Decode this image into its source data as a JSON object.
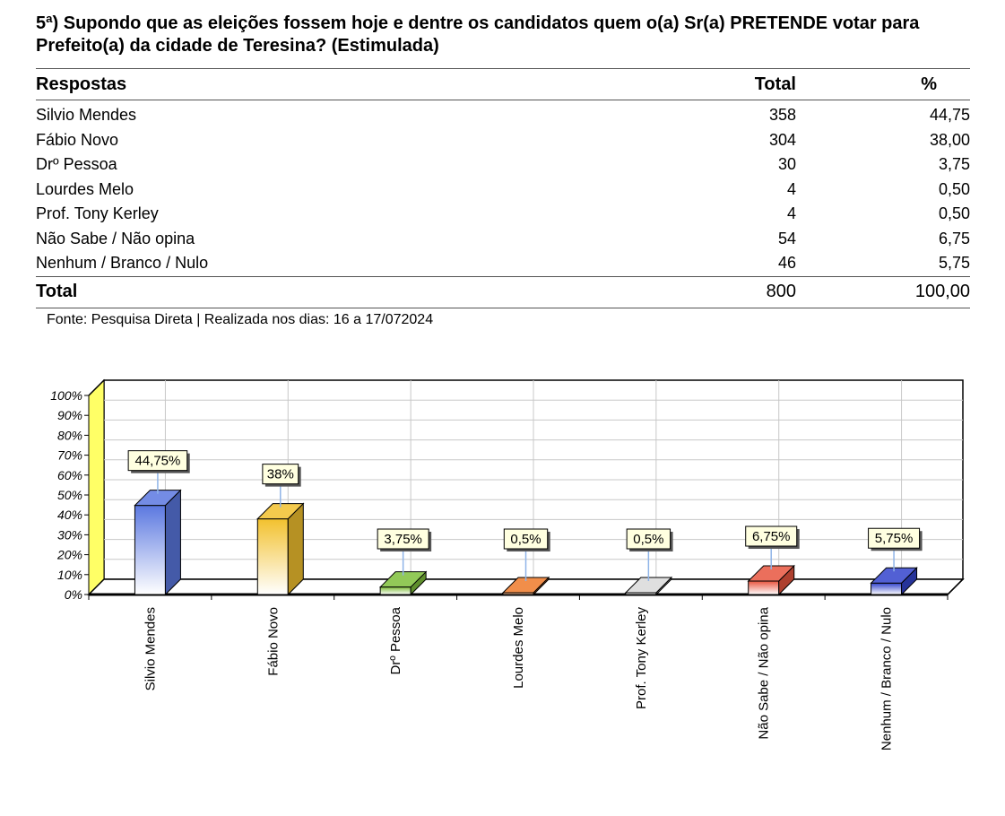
{
  "question": {
    "title": "5ª) Supondo que as eleições fossem hoje e dentre os candidatos quem o(a) Sr(a) PRETENDE votar para Prefeito(a) da cidade de Teresina? (Estimulada)"
  },
  "table": {
    "headers": {
      "label": "Respostas",
      "total": "Total",
      "percent": "%"
    },
    "rows": [
      {
        "label": "Silvio Mendes",
        "total": "358",
        "percent": "44,75"
      },
      {
        "label": "Fábio Novo",
        "total": "304",
        "percent": "38,00"
      },
      {
        "label": "Drº Pessoa",
        "total": "30",
        "percent": "3,75"
      },
      {
        "label": "Lourdes Melo",
        "total": "4",
        "percent": "0,50"
      },
      {
        "label": "Prof. Tony Kerley",
        "total": "4",
        "percent": "0,50"
      },
      {
        "label": "Não Sabe / Não opina",
        "total": "54",
        "percent": "6,75"
      },
      {
        "label": "Nenhum / Branco / Nulo",
        "total": "46",
        "percent": "5,75"
      }
    ],
    "footer": {
      "label": "Total",
      "total": "800",
      "percent": "100,00"
    }
  },
  "source_note": "Fonte: Pesquisa Direta | Realizada nos dias: 16 a 17/072024",
  "chart_data": {
    "type": "bar",
    "categories": [
      "Silvio Mendes",
      "Fábio Novo",
      "Drº Pessoa",
      "Lourdes Melo",
      "Prof. Tony Kerley",
      "Não Sabe / Não opina",
      "Nenhum / Branco / Nulo"
    ],
    "values": [
      44.75,
      38,
      3.75,
      0.5,
      0.5,
      6.75,
      5.75
    ],
    "data_labels": [
      "44,75%",
      "38%",
      "3,75%",
      "0,5%",
      "0,5%",
      "6,75%",
      "5,75%"
    ],
    "colors": [
      "#5b78e0",
      "#f2c12e",
      "#7fbf3a",
      "#ef7a2a",
      "#d9d9d9",
      "#e8553f",
      "#3344cc"
    ],
    "yticks": [
      "100%",
      "90%",
      "80%",
      "70%",
      "60%",
      "50%",
      "40%",
      "30%",
      "20%",
      "10%",
      "0%"
    ],
    "ylim": [
      0,
      100
    ],
    "grid": true,
    "style": "3d",
    "left_wall_color": "#ffff66"
  }
}
